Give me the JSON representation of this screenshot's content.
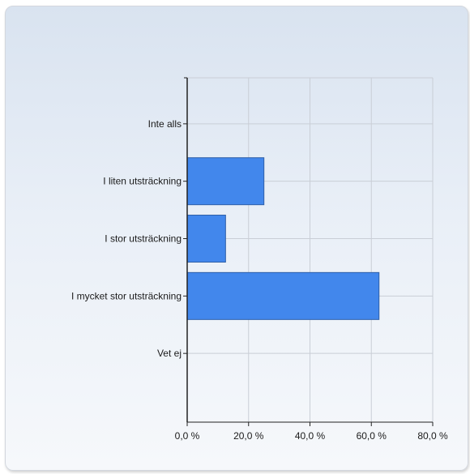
{
  "chart_data": {
    "type": "bar",
    "orientation": "horizontal",
    "categories": [
      "Inte alls",
      "I liten utsträckning",
      "I stor utsträckning",
      "I mycket stor utsträckning",
      "Vet ej"
    ],
    "values": [
      0,
      25.0,
      12.5,
      62.5,
      0
    ],
    "x_ticks": [
      "0,0 %",
      "20,0 %",
      "40,0 %",
      "60,0 %",
      "80,0 %"
    ],
    "xlim": [
      0,
      80
    ],
    "title": "",
    "xlabel": "",
    "ylabel": "",
    "grid": true,
    "bar_color": "#4287ec",
    "bar_border_color": "#2e5fa8"
  }
}
